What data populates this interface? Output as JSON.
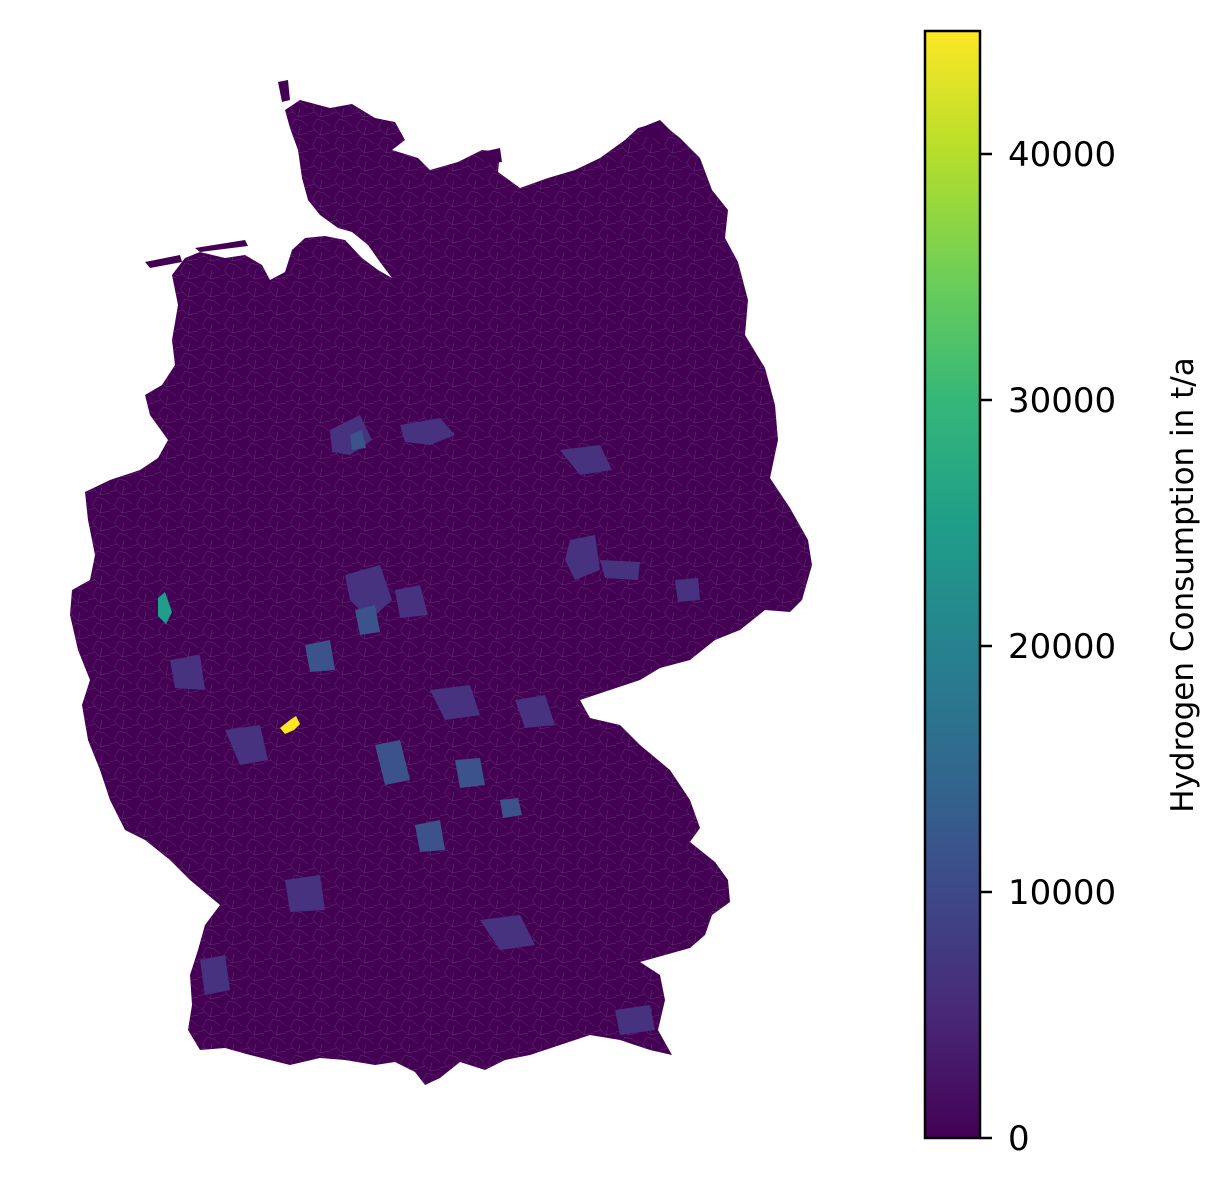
{
  "map": {
    "region": "Germany",
    "base_color": "#440154",
    "boundary_color": "#7a5a92",
    "highlight_regions": [
      {
        "name": "high-consumption-district",
        "value": 44500,
        "color": "#fde725"
      },
      {
        "name": "mid-consumption-district",
        "value": 26000,
        "color": "#1f9e89"
      },
      {
        "name": "elevated-district-group",
        "value": 11000,
        "color": "#3b528b"
      },
      {
        "name": "moderate-district-group",
        "value": 6000,
        "color": "#46327e"
      }
    ]
  },
  "colorbar": {
    "label": "Hydrogen Consumption in t/a",
    "colormap": "viridis",
    "min": 0,
    "max": 45000,
    "ticks": [
      {
        "value": 0,
        "label": "0"
      },
      {
        "value": 10000,
        "label": "10000"
      },
      {
        "value": 20000,
        "label": "20000"
      },
      {
        "value": 30000,
        "label": "30000"
      },
      {
        "value": 40000,
        "label": "40000"
      }
    ],
    "stops": [
      "#440154",
      "#482878",
      "#3e4989",
      "#31688e",
      "#26828e",
      "#1f9e89",
      "#35b779",
      "#6ece58",
      "#b5de2b",
      "#fde725"
    ]
  }
}
